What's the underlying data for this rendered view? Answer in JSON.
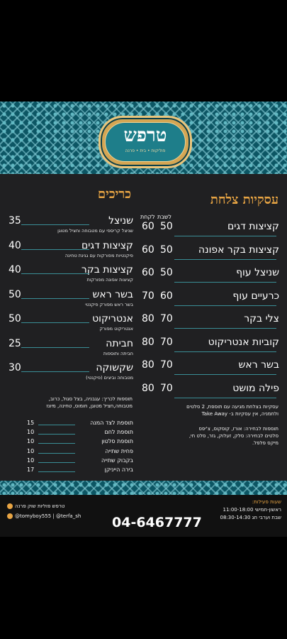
{
  "logo": {
    "title": "טרפש",
    "subtitle": "פוליקות • בית • פרנה"
  },
  "business": {
    "header": "עסקיות צלחת",
    "col_headers": {
      "seated": "לשבת",
      "takeaway": "לקחת"
    },
    "items": [
      {
        "name": "קציצות דגים",
        "p1": "50",
        "p2": "60"
      },
      {
        "name": "קציצות בקר אפונה",
        "p1": "50",
        "p2": "60"
      },
      {
        "name": "שניצל עוף",
        "p1": "50",
        "p2": "60"
      },
      {
        "name": "כרעיים עוף",
        "p1": "60",
        "p2": "70"
      },
      {
        "name": "צלי בקר",
        "p1": "70",
        "p2": "80"
      },
      {
        "name": "קוביות אנטריקוט",
        "p1": "70",
        "p2": "80"
      },
      {
        "name": "בשר ראש",
        "p1": "70",
        "p2": "80"
      },
      {
        "name": "פילה מושט",
        "p1": "70",
        "p2": "80"
      }
    ],
    "note1": "עסקיות בצלחת מגיעה עם תוספת, 2 סלטים",
    "note2": "ולחמניה, אין עסקיות ב- Take Away",
    "note3": "תוספות לבחירה: אורז, קוסקוס, צ'יפס",
    "note4": "סלטים לבחירה: סלק, זעלוק, גזר, סלט חי,",
    "note5": "מיקס פלפל."
  },
  "sandwiches": {
    "header": "כריכים",
    "items": [
      {
        "name": "שניצל",
        "desc": "שניצל קריספי עם מטבוחה וחציל מטוגן",
        "price": "35"
      },
      {
        "name": "קציצות דגים",
        "desc": "פיקנטיות מפורקות עם גגינת טחינה",
        "price": "40"
      },
      {
        "name": "קציצות בקר",
        "desc": "קציצות אפונה מפורקות",
        "price": "40"
      },
      {
        "name": "בשר ראש",
        "desc": "בשר ראש מפורק פיקנטי",
        "price": "50"
      },
      {
        "name": "אנטריקוט",
        "desc": "אנטריקוט מפורק",
        "price": "50"
      },
      {
        "name": "חביתה",
        "desc": "חביתה ותוספות",
        "price": "25"
      },
      {
        "name": "שקשוקה",
        "desc": "מטבוחה וביצים (פיקנטי)",
        "price": "30"
      }
    ],
    "extras1": "תוספות לכריך: עגבניה, בצל סגול, כרוב,",
    "extras2": "מטבוחה,חציל מטוגן, חומוס, טחינה, מיונז",
    "side": [
      {
        "name": "תוספת לצד המנה",
        "price": "15"
      },
      {
        "name": "תוספת לחם",
        "price": "10"
      },
      {
        "name": "תוספת סלטון",
        "price": "10"
      },
      {
        "name": "פחית שתייה",
        "price": "10"
      },
      {
        "name": "בקבוק שתייה",
        "price": "10"
      },
      {
        "name": "בירה הייניקן",
        "price": "17"
      }
    ]
  },
  "footer": {
    "hours_title": "שעות פעילות:",
    "hours1": "ראשון-חמישי 11:00-18:00",
    "hours2": "שבת וערבי חג 08:30-14:30",
    "phone": "04-6467777",
    "social1": "טרפש פוליות שוק פרנה",
    "social2": "@tomyboy555 | @terfa_sh"
  },
  "colors": {
    "background": "#202022",
    "accent": "#e8a544",
    "pattern": "#0c5664"
  }
}
